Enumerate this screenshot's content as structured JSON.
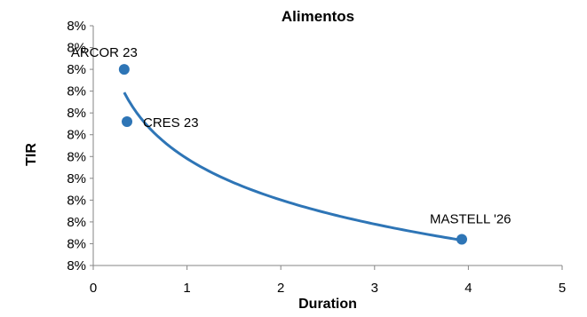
{
  "chart_data": {
    "type": "scatter",
    "title": "Alimentos",
    "xlabel": "Duration",
    "ylabel": "TIR",
    "xlim": [
      0,
      5
    ],
    "ylim": [
      0,
      11
    ],
    "x_ticks": [
      "0",
      "1",
      "2",
      "3",
      "4",
      "5"
    ],
    "y_ticks": [
      "8%",
      "8%",
      "8%",
      "8%",
      "8%",
      "8%",
      "8%",
      "8%",
      "8%",
      "8%",
      "8%",
      "8%"
    ],
    "grid": false,
    "legend": "none",
    "marker_color": "#2e75b6",
    "points": [
      {
        "label": "ARCOR 23",
        "x": 0.33,
        "y": 9.0
      },
      {
        "label": "CRES 23",
        "x": 0.36,
        "y": 6.6
      },
      {
        "label": "MASTELL '26",
        "x": 3.93,
        "y": 1.2
      }
    ],
    "trendline": {
      "type": "logarithmic",
      "color": "#2e75b6"
    }
  }
}
